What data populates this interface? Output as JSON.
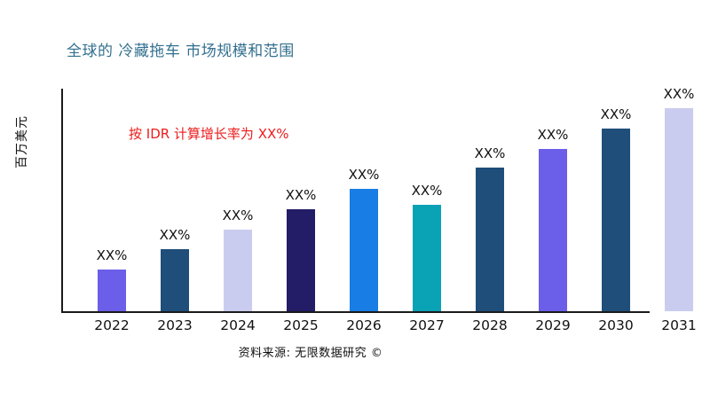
{
  "title": "全球的 冷藏拖车 市场规模和范围",
  "annotation": "按 IDR 计算增长率为 XX%",
  "y_axis_label": "百万美元",
  "source": "资料来源: 无限数据研究 ©",
  "colors": {
    "title": "#33708F",
    "annotation": "#ED1C1C",
    "axis": "#1a1a1a",
    "text": "#111111",
    "background": "#ffffff"
  },
  "chart_data": {
    "type": "bar",
    "title": "全球的 冷藏拖车 市场规模和范围",
    "xlabel": "",
    "ylabel": "百万美元",
    "annotation": "按 IDR 计算增长率为 XX%",
    "legend": false,
    "grid": false,
    "categories": [
      "2022",
      "2023",
      "2024",
      "2025",
      "2026",
      "2027",
      "2028",
      "2029",
      "2030",
      "2031"
    ],
    "bar_labels": [
      "XX%",
      "XX%",
      "XX%",
      "XX%",
      "XX%",
      "XX%",
      "XX%",
      "XX%",
      "XX%",
      "XX%"
    ],
    "values_relative_pct": [
      20.5,
      30.6,
      40.2,
      50.2,
      60.3,
      52.4,
      70.7,
      79.9,
      90.0,
      100.0
    ],
    "bar_colors": [
      "#6B5EE8",
      "#1F4E7A",
      "#CACCEF",
      "#231C66",
      "#187DE4",
      "#0AA2B5",
      "#1F4E7A",
      "#6B5EE8",
      "#1F4E7A",
      "#CACCEF"
    ],
    "ylim_note": "no numeric axis ticks shown; values displayed as XX% placeholders"
  }
}
